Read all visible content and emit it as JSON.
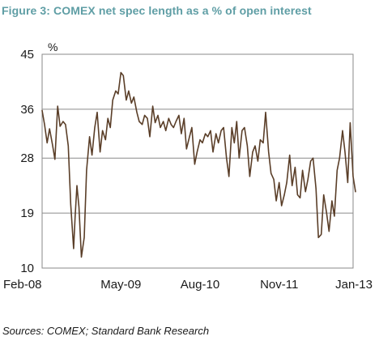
{
  "figure": {
    "title": "Figure 3: COMEX net spec length as a % of open interest",
    "source": "Sources: COMEX; Standard Bank Research"
  },
  "colors": {
    "title": "#5f9ea5",
    "line": "#5a3e28",
    "grid": "#8a8a8a",
    "frame": "#8a8a8a"
  },
  "chart_data": {
    "type": "line",
    "title": "",
    "xlabel": "",
    "ylabel": "%",
    "ylim": [
      10,
      45
    ],
    "yticks": [
      10,
      19,
      28,
      36,
      45
    ],
    "ytick_labels": [
      "10",
      "19",
      "28",
      "36",
      "45"
    ],
    "xlim": [
      "2008-02",
      "2013-01"
    ],
    "xticks": [
      "2008-02",
      "2009-05",
      "2010-08",
      "2011-11",
      "2013-01"
    ],
    "xtick_labels": [
      "Feb-08",
      "May-09",
      "Aug-10",
      "Nov-11",
      "Jan-13"
    ],
    "grid": "horizontal",
    "legend": "none",
    "series": [
      {
        "x": [
          "2008-02-01",
          "2008-02-15",
          "2008-03-01",
          "2008-03-15",
          "2008-04-01",
          "2008-04-15",
          "2008-05-01",
          "2008-05-15",
          "2008-06-01",
          "2008-06-15",
          "2008-07-01",
          "2008-07-15",
          "2008-08-01",
          "2008-08-10",
          "2008-08-20",
          "2008-09-01",
          "2008-09-15",
          "2008-10-01",
          "2008-10-15",
          "2008-11-01",
          "2008-11-15",
          "2008-12-01",
          "2008-12-15",
          "2009-01-01",
          "2009-01-15",
          "2009-02-01",
          "2009-02-15",
          "2009-03-01",
          "2009-03-15",
          "2009-04-01",
          "2009-04-15",
          "2009-05-01",
          "2009-05-15",
          "2009-06-01",
          "2009-06-15",
          "2009-07-01",
          "2009-07-15",
          "2009-08-01",
          "2009-08-15",
          "2009-09-01",
          "2009-09-15",
          "2009-10-01",
          "2009-10-15",
          "2009-11-01",
          "2009-11-15",
          "2009-12-01",
          "2009-12-15",
          "2010-01-01",
          "2010-01-15",
          "2010-02-01",
          "2010-02-15",
          "2010-03-01",
          "2010-03-15",
          "2010-04-01",
          "2010-04-15",
          "2010-05-01",
          "2010-05-15",
          "2010-06-01",
          "2010-06-15",
          "2010-07-01",
          "2010-07-15",
          "2010-08-01",
          "2010-08-15",
          "2010-09-01",
          "2010-09-15",
          "2010-10-01",
          "2010-10-15",
          "2010-11-01",
          "2010-11-15",
          "2010-12-01",
          "2010-12-15",
          "2011-01-01",
          "2011-01-15",
          "2011-02-01",
          "2011-02-15",
          "2011-03-01",
          "2011-03-15",
          "2011-04-01",
          "2011-04-15",
          "2011-05-01",
          "2011-05-15",
          "2011-06-01",
          "2011-06-15",
          "2011-07-01",
          "2011-07-15",
          "2011-08-01",
          "2011-08-15",
          "2011-09-01",
          "2011-09-15",
          "2011-10-01",
          "2011-10-15",
          "2011-11-01",
          "2011-11-15",
          "2011-12-01",
          "2011-12-15",
          "2012-01-01",
          "2012-01-15",
          "2012-02-01",
          "2012-02-15",
          "2012-03-01",
          "2012-03-15",
          "2012-04-01",
          "2012-04-15",
          "2012-05-01",
          "2012-05-15",
          "2012-06-01",
          "2012-06-15",
          "2012-07-01",
          "2012-07-15",
          "2012-08-01",
          "2012-08-15",
          "2012-09-01",
          "2012-09-15",
          "2012-10-01",
          "2012-10-15",
          "2012-11-01",
          "2012-11-15",
          "2012-12-01",
          "2012-12-15",
          "2013-01-01",
          "2013-01-15"
        ],
        "values": [
          35.8,
          33.5,
          30.5,
          32.8,
          30.2,
          27.8,
          36.5,
          33.2,
          34.0,
          33.5,
          30.0,
          20.5,
          13.2,
          18.5,
          23.5,
          20.0,
          11.8,
          15.0,
          26.0,
          31.5,
          28.5,
          33.0,
          35.5,
          29.0,
          32.5,
          31.0,
          34.5,
          33.0,
          37.5,
          39.0,
          38.5,
          42.0,
          41.5,
          37.5,
          39.0,
          37.0,
          38.0,
          35.5,
          34.0,
          33.5,
          35.0,
          34.5,
          31.5,
          36.5,
          33.8,
          35.0,
          33.0,
          34.0,
          32.5,
          34.5,
          33.5,
          33.0,
          34.0,
          35.0,
          32.0,
          34.5,
          29.5,
          31.5,
          33.0,
          27.0,
          29.0,
          31.0,
          30.5,
          32.0,
          31.5,
          32.5,
          29.0,
          32.0,
          30.5,
          32.5,
          33.0,
          28.0,
          25.0,
          33.0,
          30.5,
          34.0,
          28.0,
          32.5,
          33.0,
          30.0,
          25.0,
          29.0,
          30.0,
          27.5,
          31.0,
          30.5,
          35.5,
          29.0,
          25.5,
          24.5,
          21.0,
          24.0,
          20.2,
          22.0,
          24.0,
          28.5,
          23.5,
          26.5,
          22.0,
          21.5,
          26.0,
          22.5,
          24.5,
          27.5,
          28.0,
          23.0,
          15.0,
          15.5,
          22.0,
          19.0,
          16.0,
          21.0,
          18.5,
          26.0,
          28.0,
          32.5,
          29.0,
          24.0,
          33.8,
          25.0,
          22.5
        ]
      }
    ]
  }
}
